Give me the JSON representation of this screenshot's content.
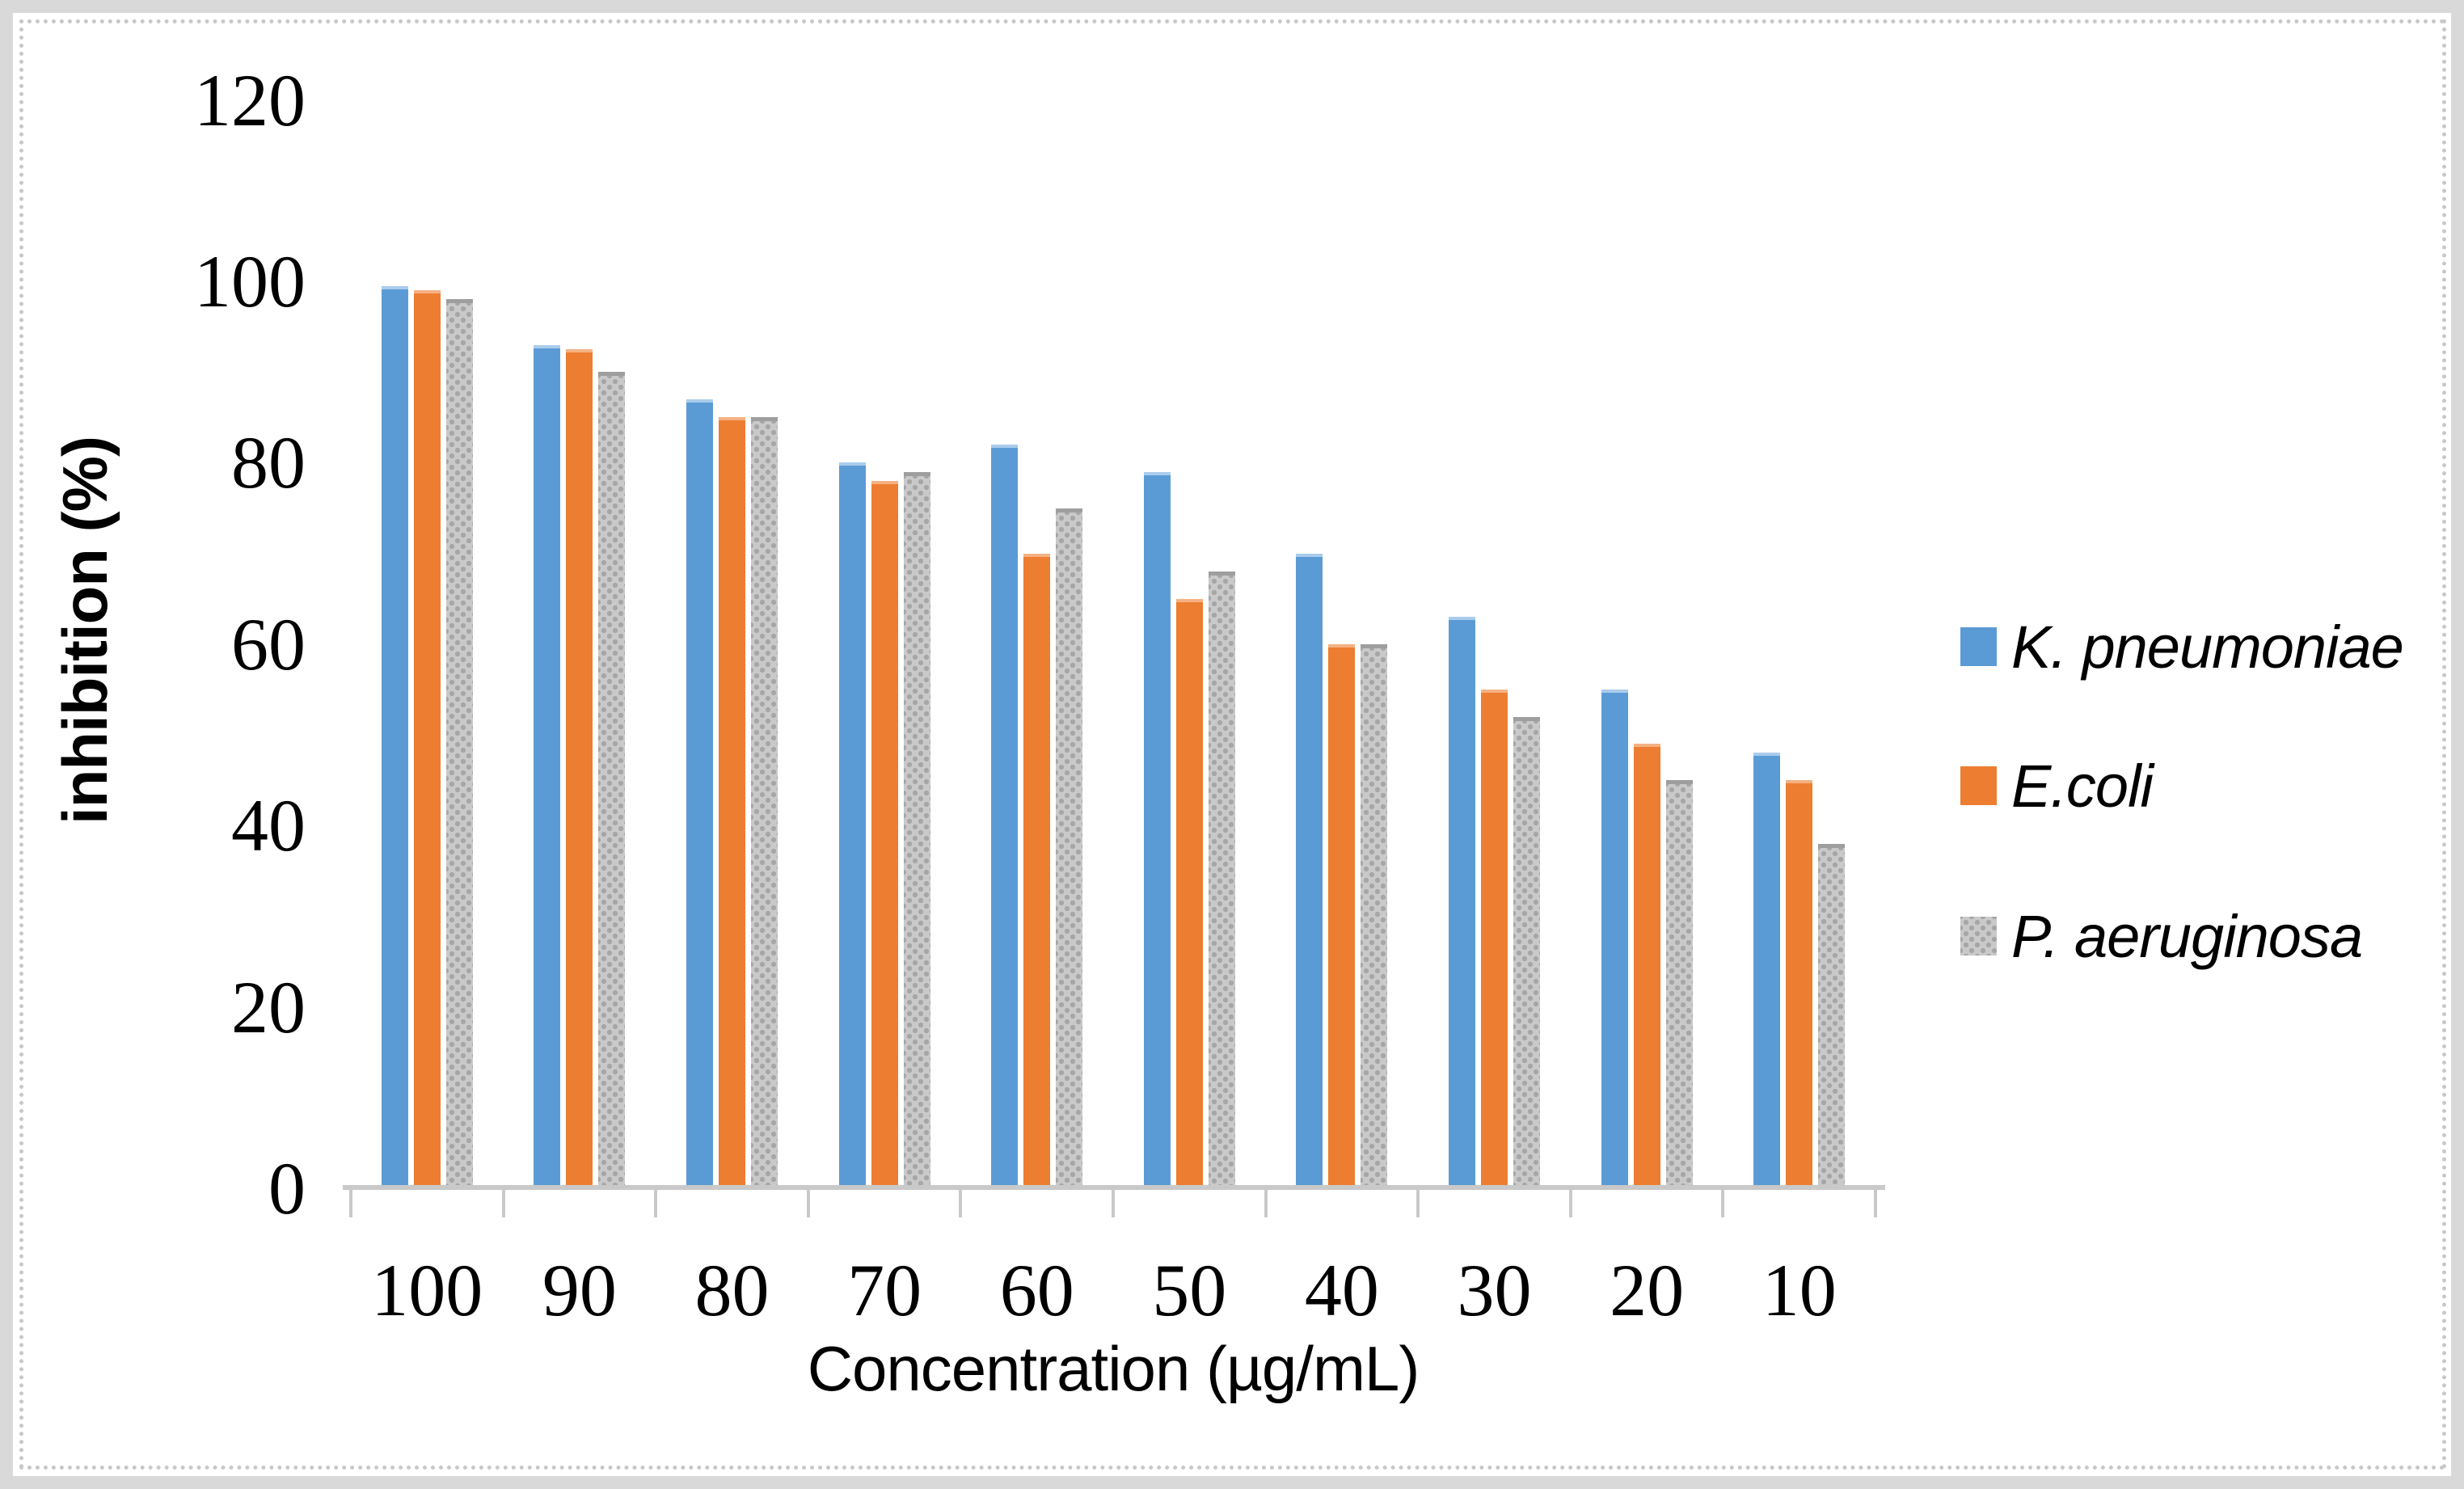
{
  "chart_data": {
    "type": "bar",
    "title": "",
    "xlabel": "Concentration (µg/mL)",
    "ylabel": "inhibition (%)",
    "categories": [
      "100",
      "90",
      "80",
      "70",
      "60",
      "50",
      "40",
      "30",
      "20",
      "10"
    ],
    "yticks": [
      0,
      20,
      40,
      60,
      80,
      100,
      120
    ],
    "ylim": [
      0,
      120
    ],
    "grid": false,
    "legend_position": "right",
    "series": [
      {
        "name": "K. pneumoniae",
        "color": "#5B9BD5",
        "pattern": "solid",
        "values": [
          99.5,
          93,
          87,
          80,
          82,
          79,
          70,
          63,
          55,
          48
        ]
      },
      {
        "name": "E.coli",
        "color": "#ED7D31",
        "pattern": "solid",
        "values": [
          99,
          92.5,
          85,
          78,
          70,
          65,
          60,
          55,
          49,
          45
        ]
      },
      {
        "name": "P. aeruginosa",
        "color": "#C9C9C9",
        "dot_color": "#A6A6A6",
        "pattern": "dots",
        "values": [
          98,
          90,
          85,
          79,
          75,
          68,
          60,
          52,
          45,
          38
        ]
      }
    ]
  }
}
